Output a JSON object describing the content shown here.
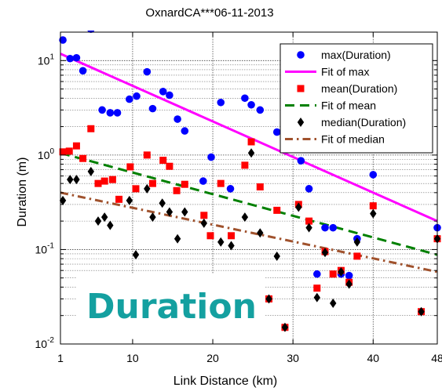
{
  "chart_data": {
    "type": "scatter",
    "title": "OxnardCA***06-11-2013",
    "xlabel": "Link Distance (km)",
    "ylabel": "Duration (m)",
    "xlim": [
      1,
      48
    ],
    "ylim": [
      0.01,
      20
    ],
    "yscale": "log",
    "grid": "y-major-minor",
    "legend_position": "top-right",
    "x_ticks": [
      {
        "value": 1,
        "label": "1"
      },
      {
        "value": 10,
        "label": "10"
      },
      {
        "value": 20,
        "label": "20"
      },
      {
        "value": 30,
        "label": "30"
      },
      {
        "value": 40,
        "label": "40"
      },
      {
        "value": 48,
        "label": "48"
      }
    ],
    "y_ticks": [
      {
        "value": 0.01,
        "base": "10",
        "exp": "-2"
      },
      {
        "value": 0.1,
        "base": "10",
        "exp": "-1"
      },
      {
        "value": 1,
        "base": "10",
        "exp": "0"
      },
      {
        "value": 10,
        "base": "10",
        "exp": "1"
      }
    ],
    "series": [
      {
        "name": "max(Duration)",
        "kind": "points",
        "marker": "circle",
        "color": "#0000ff",
        "points": [
          [
            1.3,
            16.5
          ],
          [
            2.2,
            10.5
          ],
          [
            3.0,
            10.7
          ],
          [
            3.8,
            7.8
          ],
          [
            4.8,
            21.5
          ],
          [
            6.2,
            3.0
          ],
          [
            7.2,
            2.8
          ],
          [
            8.1,
            2.8
          ],
          [
            9.6,
            3.9
          ],
          [
            10.5,
            4.2
          ],
          [
            11.8,
            7.6
          ],
          [
            12.5,
            3.1
          ],
          [
            13.8,
            4.7
          ],
          [
            14.6,
            4.3
          ],
          [
            15.6,
            2.4
          ],
          [
            16.5,
            1.8
          ],
          [
            18.8,
            0.53
          ],
          [
            19.8,
            0.95
          ],
          [
            21.0,
            3.6
          ],
          [
            22.2,
            0.44
          ],
          [
            24.0,
            4.0
          ],
          [
            24.8,
            3.4
          ],
          [
            25.9,
            3.0
          ],
          [
            28.0,
            1.75
          ],
          [
            31.0,
            0.87
          ],
          [
            32.0,
            0.44
          ],
          [
            33.0,
            0.055
          ],
          [
            34.0,
            0.17
          ],
          [
            35.0,
            0.17
          ],
          [
            36.0,
            0.055
          ],
          [
            37.0,
            0.053
          ],
          [
            38.0,
            0.13
          ],
          [
            40.0,
            0.62
          ],
          [
            48.0,
            0.17
          ]
        ]
      },
      {
        "name": "Fit of max",
        "kind": "fit",
        "style": "solid",
        "color": "#ff00ff",
        "from": [
          1,
          11.8
        ],
        "to": [
          48,
          0.2
        ]
      },
      {
        "name": "mean(Duration)",
        "kind": "points",
        "marker": "square",
        "color": "#ff0000",
        "points": [
          [
            1.3,
            1.08
          ],
          [
            2.1,
            1.1
          ],
          [
            3.0,
            1.25
          ],
          [
            3.8,
            0.92
          ],
          [
            4.8,
            1.9
          ],
          [
            5.7,
            0.5
          ],
          [
            6.5,
            0.53
          ],
          [
            7.5,
            0.55
          ],
          [
            8.3,
            0.34
          ],
          [
            9.7,
            0.75
          ],
          [
            10.4,
            0.44
          ],
          [
            11.8,
            1.0
          ],
          [
            12.5,
            0.5
          ],
          [
            13.8,
            0.88
          ],
          [
            14.6,
            0.76
          ],
          [
            15.5,
            0.42
          ],
          [
            16.5,
            0.49
          ],
          [
            18.9,
            0.23
          ],
          [
            19.7,
            0.14
          ],
          [
            21.0,
            0.5
          ],
          [
            22.3,
            0.14
          ],
          [
            24.0,
            0.78
          ],
          [
            24.8,
            1.38
          ],
          [
            25.9,
            0.46
          ],
          [
            27.0,
            0.03
          ],
          [
            28.0,
            0.26
          ],
          [
            29.0,
            0.015
          ],
          [
            30.7,
            0.3
          ],
          [
            32.0,
            0.2
          ],
          [
            33.0,
            0.039
          ],
          [
            34.0,
            0.095
          ],
          [
            35.0,
            0.055
          ],
          [
            36.0,
            0.06
          ],
          [
            37.0,
            0.045
          ],
          [
            38.0,
            0.085
          ],
          [
            40.0,
            0.29
          ],
          [
            46.0,
            0.022
          ],
          [
            48.0,
            0.13
          ]
        ]
      },
      {
        "name": "Fit of mean",
        "kind": "fit",
        "style": "dashed",
        "color": "#008000",
        "from": [
          1,
          1.05
        ],
        "to": [
          48,
          0.088
        ]
      },
      {
        "name": "median(Duration)",
        "kind": "points",
        "marker": "diamond",
        "color": "#000000",
        "points": [
          [
            1.3,
            0.33
          ],
          [
            2.2,
            0.55
          ],
          [
            3.0,
            0.55
          ],
          [
            4.8,
            0.67
          ],
          [
            5.7,
            0.2
          ],
          [
            6.5,
            0.22
          ],
          [
            7.2,
            0.18
          ],
          [
            9.6,
            0.33
          ],
          [
            10.4,
            0.088
          ],
          [
            11.8,
            0.44
          ],
          [
            12.5,
            0.22
          ],
          [
            13.7,
            0.31
          ],
          [
            14.6,
            0.25
          ],
          [
            15.6,
            0.13
          ],
          [
            16.5,
            0.25
          ],
          [
            18.9,
            0.19
          ],
          [
            21.0,
            0.12
          ],
          [
            22.3,
            0.11
          ],
          [
            24.0,
            0.22
          ],
          [
            24.8,
            1.05
          ],
          [
            25.9,
            0.15
          ],
          [
            27.0,
            0.03
          ],
          [
            28.0,
            0.085
          ],
          [
            29.0,
            0.015
          ],
          [
            30.7,
            0.28
          ],
          [
            32.0,
            0.17
          ],
          [
            33.0,
            0.031
          ],
          [
            34.0,
            0.093
          ],
          [
            35.0,
            0.027
          ],
          [
            36.0,
            0.058
          ],
          [
            37.0,
            0.043
          ],
          [
            38.0,
            0.12
          ],
          [
            40.0,
            0.24
          ],
          [
            46.0,
            0.022
          ],
          [
            48.0,
            0.13
          ]
        ]
      },
      {
        "name": "Fit of median",
        "kind": "fit",
        "style": "dashdot",
        "color": "#a0522d",
        "from": [
          1,
          0.4
        ],
        "to": [
          48,
          0.058
        ]
      }
    ],
    "annotations": [
      {
        "text": "Duration",
        "color": "#14a0a0"
      }
    ]
  }
}
